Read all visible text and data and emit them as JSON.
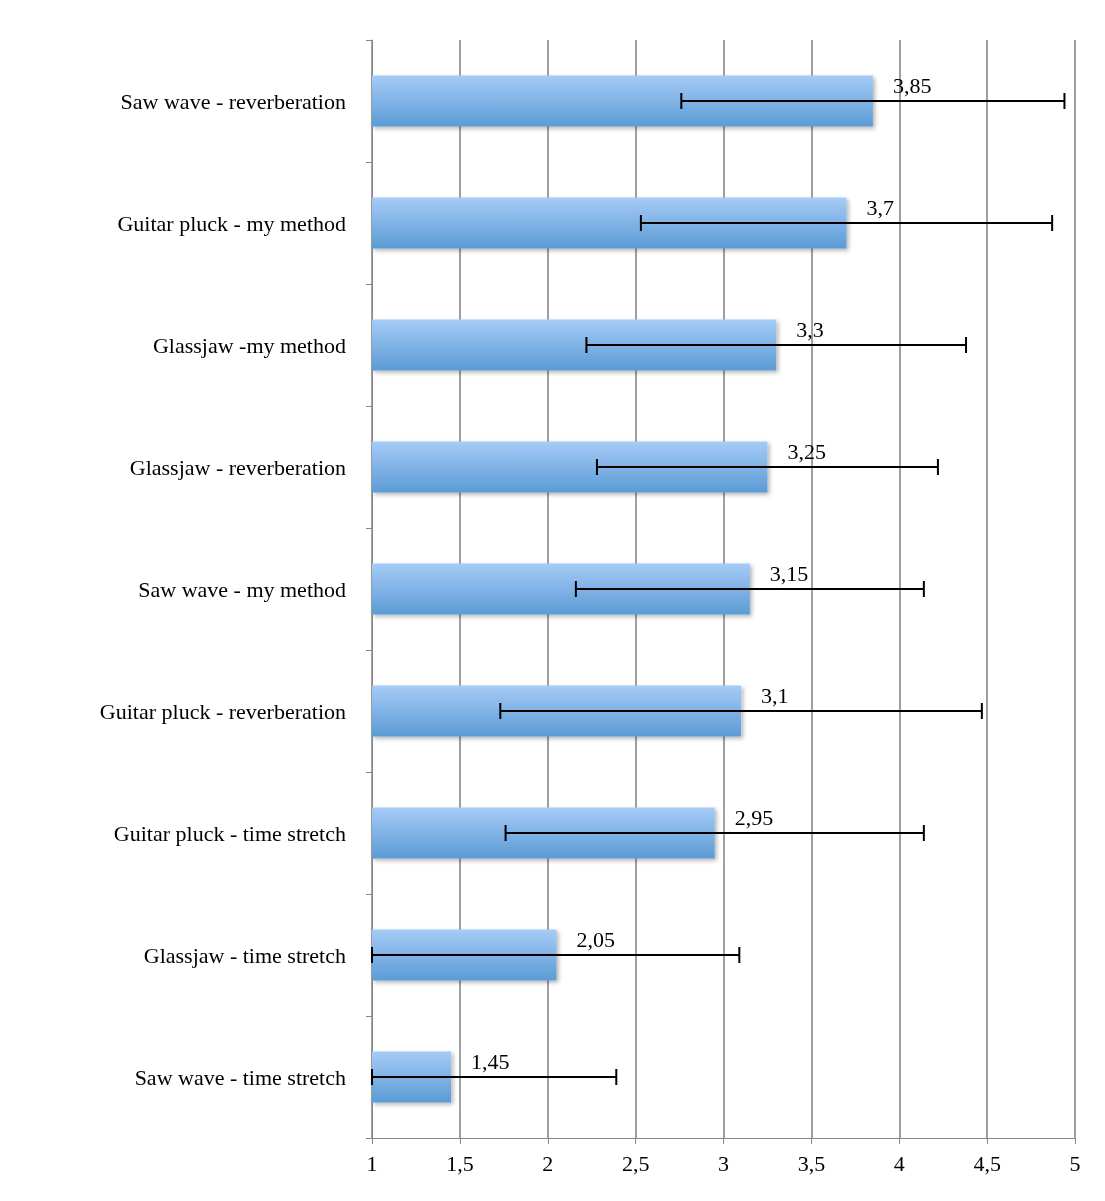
{
  "chart_data": {
    "type": "bar",
    "orientation": "horizontal",
    "categories": [
      "Saw wave - reverberation",
      "Guitar pluck - my method",
      "Glassjaw -my method",
      "Glassjaw - reverberation",
      "Saw wave - my method",
      "Guitar pluck - reverberation",
      "Guitar pluck - time stretch",
      "Glassjaw - time stretch",
      "Saw wave - time stretch"
    ],
    "values": [
      3.85,
      3.7,
      3.3,
      3.25,
      3.15,
      3.1,
      2.95,
      2.05,
      1.45
    ],
    "value_labels": [
      "3,85",
      "3,7",
      "3,3",
      "3,25",
      "3,15",
      "3,1",
      "2,95",
      "2,05",
      "1,45"
    ],
    "errors": [
      1.09,
      1.17,
      1.08,
      0.97,
      0.99,
      1.37,
      1.19,
      [
        1,
        3.09
      ],
      [
        1,
        2.39
      ]
    ],
    "color": "#5b9bd5",
    "xlim": [
      1,
      5
    ],
    "xticks": [
      1,
      {
        "value": 1.5,
        "label": "1,5"
      },
      2,
      {
        "value": 2.5,
        "label": "2,5"
      },
      3,
      {
        "value": 3.5,
        "label": "3,5"
      },
      4,
      {
        "value": 4.5,
        "label": "4,5"
      },
      5
    ],
    "grid": "x"
  }
}
